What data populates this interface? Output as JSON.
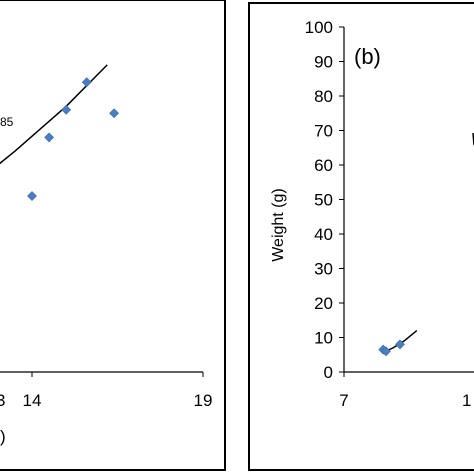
{
  "chart_data": [
    {
      "type": "scatter",
      "panel_label": "",
      "equation_fragment": "85",
      "xlabel_fragment": ")",
      "ylabel": "",
      "x_ticks": [
        "14",
        "19"
      ],
      "xlim": [
        9,
        19
      ],
      "ylim": [
        0,
        100
      ],
      "points": [
        {
          "x": 14.0,
          "y": 51
        },
        {
          "x": 14.5,
          "y": 68
        },
        {
          "x": 15.0,
          "y": 76
        },
        {
          "x": 15.6,
          "y": 84
        },
        {
          "x": 16.4,
          "y": 75
        }
      ],
      "trendline": {
        "x": [
          9.0,
          10.5,
          12.0,
          13.5,
          15.0,
          16.2
        ],
        "y": [
          34,
          42,
          52,
          64,
          77,
          89
        ]
      },
      "marker_color": "#4a7ec0",
      "line_color": "#000000"
    },
    {
      "type": "scatter",
      "panel_label": "(b)",
      "ylabel": "Weight (g)",
      "y_ticks": [
        "0",
        "10",
        "20",
        "30",
        "40",
        "50",
        "60",
        "70",
        "80",
        "90",
        "100"
      ],
      "x_ticks": [
        "7",
        "1"
      ],
      "xlim": [
        7,
        17
      ],
      "ylim": [
        0,
        100
      ],
      "points": [
        {
          "x": 9.8,
          "y": 6.5
        },
        {
          "x": 10.0,
          "y": 6.0
        },
        {
          "x": 11.0,
          "y": 8.0
        }
      ],
      "trendline": {
        "x": [
          9.7,
          10.5,
          11.3,
          12.2
        ],
        "y": [
          5.5,
          7.0,
          9.0,
          12.0
        ]
      },
      "marker_color": "#4a7ec0",
      "line_color": "#000000"
    }
  ]
}
